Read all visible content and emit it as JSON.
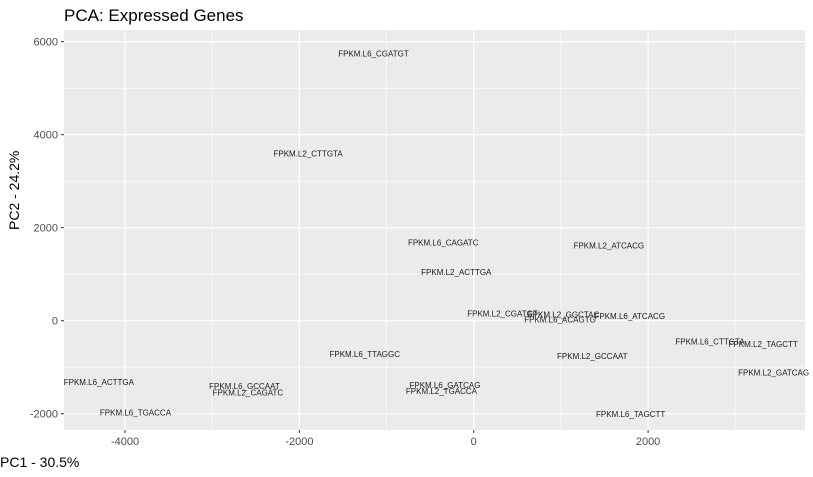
{
  "chart_data": {
    "type": "scatter",
    "title": "PCA: Expressed Genes",
    "xlabel": "PC1 - 30.5%",
    "ylabel": "PC2 - 24.2%",
    "xlim": [
      -4700,
      3800
    ],
    "ylim": [
      -2350,
      6250
    ],
    "x_ticks": [
      -4000,
      -2000,
      0,
      2000
    ],
    "y_ticks": [
      -2000,
      0,
      2000,
      4000,
      6000
    ],
    "grid": true,
    "panel_background": "#ebebeb",
    "grid_color": "#ffffff",
    "label_color": "#1a1a1a",
    "points": [
      {
        "label": "FPKM.L6_CGATGT",
        "x": -1150,
        "y": 5750
      },
      {
        "label": "FPKM.L2_CTTGTA",
        "x": -1900,
        "y": 3600
      },
      {
        "label": "FPKM.L6_CAGATC",
        "x": -350,
        "y": 1680
      },
      {
        "label": "FPKM.L2_ATCACG",
        "x": 1550,
        "y": 1620
      },
      {
        "label": "FPKM.L2_ACTTGA",
        "x": -200,
        "y": 1050
      },
      {
        "label": "FPKM.L2_CGATGT",
        "x": 330,
        "y": 160
      },
      {
        "label": "FPKM.L2_GGCTAC",
        "x": 1030,
        "y": 130
      },
      {
        "label": "FPKM.L6_ACAGTG",
        "x": 990,
        "y": 30
      },
      {
        "label": "FPKM.L6_ATCACG",
        "x": 1790,
        "y": 100
      },
      {
        "label": "FPKM.L6_TTAGGC",
        "x": -1250,
        "y": -720
      },
      {
        "label": "FPKM.L2_GCCAAT",
        "x": 1360,
        "y": -760
      },
      {
        "label": "FPKM.L6_CTTGTA",
        "x": 2710,
        "y": -450
      },
      {
        "label": "FPKM.L2_TAGCTT",
        "x": 3320,
        "y": -500
      },
      {
        "label": "FPKM.L2_GATCAG",
        "x": 3440,
        "y": -1110
      },
      {
        "label": "FPKM.L6_ACTTGA",
        "x": -4300,
        "y": -1320
      },
      {
        "label": "FPKM.L6_GCCAAT",
        "x": -2630,
        "y": -1400
      },
      {
        "label": "FPKM.L2_CAGATC",
        "x": -2590,
        "y": -1540
      },
      {
        "label": "FPKM.L6_GATCAG",
        "x": -330,
        "y": -1380
      },
      {
        "label": "FPKM.L2_TGACCA",
        "x": -370,
        "y": -1510
      },
      {
        "label": "FPKM.L6_TGACCA",
        "x": -3880,
        "y": -1970
      },
      {
        "label": "FPKM.L6_TAGCTT",
        "x": 1800,
        "y": -2010
      }
    ]
  }
}
